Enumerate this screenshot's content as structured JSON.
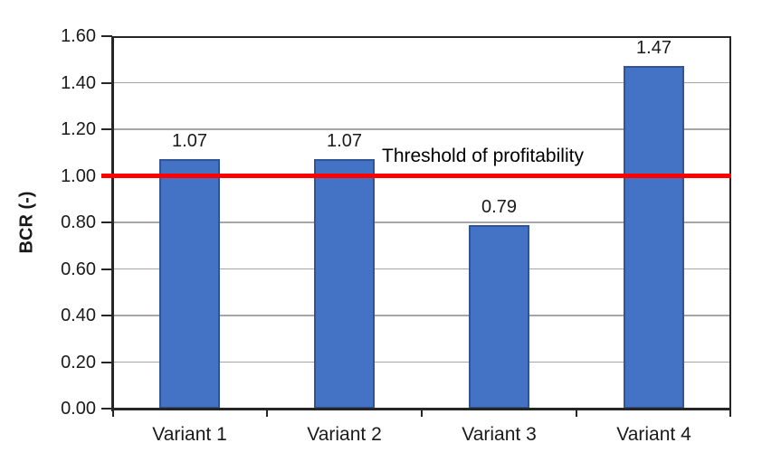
{
  "chart_data": {
    "type": "bar",
    "title": "",
    "categories": [
      "Variant 1",
      "Variant 2",
      "Variant 3",
      "Variant 4"
    ],
    "values": [
      1.07,
      1.07,
      0.79,
      1.47
    ],
    "value_labels": [
      "1.07",
      "1.07",
      "0.79",
      "1.47"
    ],
    "xlabel": "",
    "ylabel": "BCR (-)",
    "ylim": [
      0,
      1.6
    ],
    "ytick_step": 0.2,
    "ytick_labels": [
      "0.00",
      "0.20",
      "0.40",
      "0.60",
      "0.80",
      "1.00",
      "1.20",
      "1.40",
      "1.60"
    ],
    "grid": true,
    "legend": "none",
    "bar_color": "#4472C4",
    "bar_border_color": "#2F5597",
    "gridline_color": "#A6A6A6",
    "axis_color": "#262626",
    "threshold": {
      "value": 1.0,
      "label": "Threshold of profitability",
      "color": "#FF0000"
    }
  }
}
